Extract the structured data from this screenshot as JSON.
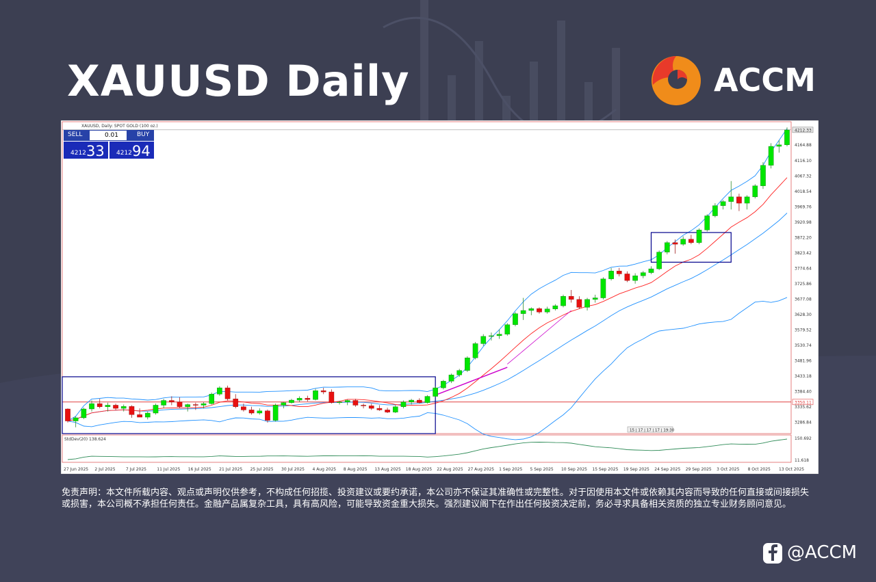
{
  "page": {
    "title": "XAUUSD Daily",
    "brand": "ACCM",
    "social_handle": "@ACCM",
    "disclaimer": "免责声明：本文件所载内容、观点或声明仅供参考，不构成任何招揽、投资建议或要约承诺，本公司亦不保证其准确性或完整性。对于因使用本文件或依赖其内容而导致的任何直接或间接损失或损害，本公司概不承担任何责任。金融产品属复杂工具，具有高风险，可能导致资金重大损失。强烈建议阁下在作出任何投资决定前，务必寻求具备相关资质的独立专业财务顾问意见。",
    "colors": {
      "background": "#3c3f52",
      "bull": "#00e600",
      "bear": "#e81010",
      "bb": "#1e90ff",
      "ma": "#ff2020",
      "stddev": "#2e8b57",
      "box": "#00008b",
      "hline": "#e04040",
      "accent": "#f08c1a"
    }
  },
  "trade_panel": {
    "sell_label": "SELL",
    "buy_label": "BUY",
    "lot": "0.01",
    "bid_prefix": "4212",
    "bid_main": "33",
    "ask_prefix": "4212",
    "ask_main": "94"
  },
  "chart_data": {
    "type": "candlestick",
    "header": "XAUUSD, Daily: SPOT GOLD (100 oz.)",
    "y_ticks": [
      "4212.33",
      "4164.88",
      "4116.10",
      "4067.32",
      "4018.54",
      "3969.76",
      "3920.98",
      "3872.20",
      "3823.42",
      "3774.64",
      "3725.86",
      "3677.08",
      "3628.30",
      "3579.52",
      "3530.74",
      "3481.96",
      "3433.18",
      "3384.40",
      "3350.11",
      "3335.62",
      "3286.84"
    ],
    "ylim": [
      3250,
      4225
    ],
    "current_price": "4212.33",
    "hline_price": 3350.11,
    "hline_label": "3350.11",
    "x_labels": [
      "27 Jun 2025",
      "2 Jul 2025",
      "7 Jul 2025",
      "11 Jul 2025",
      "16 Jul 2025",
      "21 Jul 2025",
      "25 Jul 2025",
      "30 Jul 2025",
      "4 Aug 2025",
      "8 Aug 2025",
      "13 Aug 2025",
      "18 Aug 2025",
      "22 Aug 2025",
      "27 Aug 2025",
      "1 Sep 2025",
      "5 Sep 2025",
      "10 Sep 2025",
      "15 Sep 2025",
      "19 Sep 2025",
      "24 Sep 2025",
      "29 Sep 2025",
      "3 Oct 2025",
      "8 Oct 2025",
      "13 Oct 2025"
    ],
    "time_marker": "15 | 17 | 17 | 17 | 19:30",
    "candles": [
      [
        3328,
        3330,
        3285,
        3290
      ],
      [
        3290,
        3305,
        3270,
        3300
      ],
      [
        3300,
        3332,
        3296,
        3328
      ],
      [
        3328,
        3355,
        3320,
        3345
      ],
      [
        3345,
        3360,
        3330,
        3335
      ],
      [
        3335,
        3348,
        3320,
        3340
      ],
      [
        3340,
        3345,
        3325,
        3330
      ],
      [
        3330,
        3342,
        3320,
        3336
      ],
      [
        3336,
        3340,
        3300,
        3310
      ],
      [
        3310,
        3330,
        3305,
        3302
      ],
      [
        3302,
        3320,
        3295,
        3315
      ],
      [
        3315,
        3345,
        3310,
        3340
      ],
      [
        3340,
        3360,
        3330,
        3355
      ],
      [
        3355,
        3368,
        3340,
        3350
      ],
      [
        3350,
        3365,
        3330,
        3335
      ],
      [
        3335,
        3345,
        3320,
        3342
      ],
      [
        3342,
        3348,
        3325,
        3340
      ],
      [
        3340,
        3350,
        3330,
        3345
      ],
      [
        3345,
        3380,
        3342,
        3375
      ],
      [
        3375,
        3400,
        3370,
        3395
      ],
      [
        3395,
        3402,
        3355,
        3360
      ],
      [
        3360,
        3375,
        3330,
        3335
      ],
      [
        3335,
        3345,
        3320,
        3325
      ],
      [
        3325,
        3335,
        3310,
        3315
      ],
      [
        3315,
        3330,
        3310,
        3322
      ],
      [
        3322,
        3326,
        3285,
        3292
      ],
      [
        3292,
        3345,
        3288,
        3340
      ],
      [
        3340,
        3350,
        3330,
        3348
      ],
      [
        3348,
        3360,
        3345,
        3356
      ],
      [
        3356,
        3368,
        3350,
        3362
      ],
      [
        3362,
        3370,
        3352,
        3358
      ],
      [
        3358,
        3392,
        3355,
        3386
      ],
      [
        3386,
        3395,
        3375,
        3382
      ],
      [
        3382,
        3390,
        3345,
        3348
      ],
      [
        3348,
        3354,
        3342,
        3350
      ],
      [
        3350,
        3358,
        3340,
        3355
      ],
      [
        3355,
        3360,
        3335,
        3340
      ],
      [
        3340,
        3345,
        3330,
        3338
      ],
      [
        3338,
        3345,
        3325,
        3330
      ],
      [
        3330,
        3340,
        3322,
        3325
      ],
      [
        3325,
        3332,
        3315,
        3318
      ],
      [
        3318,
        3340,
        3315,
        3335
      ],
      [
        3335,
        3355,
        3330,
        3350
      ],
      [
        3350,
        3360,
        3342,
        3356
      ],
      [
        3356,
        3362,
        3345,
        3348
      ],
      [
        3348,
        3372,
        3345,
        3368
      ],
      [
        3368,
        3400,
        3365,
        3395
      ],
      [
        3395,
        3420,
        3390,
        3416
      ],
      [
        3416,
        3440,
        3410,
        3436
      ],
      [
        3436,
        3455,
        3430,
        3450
      ],
      [
        3450,
        3495,
        3445,
        3490
      ],
      [
        3490,
        3540,
        3485,
        3535
      ],
      [
        3535,
        3565,
        3528,
        3558
      ],
      [
        3558,
        3570,
        3545,
        3560
      ],
      [
        3560,
        3580,
        3550,
        3565
      ],
      [
        3565,
        3600,
        3560,
        3595
      ],
      [
        3595,
        3635,
        3590,
        3630
      ],
      [
        3630,
        3680,
        3610,
        3640
      ],
      [
        3640,
        3650,
        3625,
        3646
      ],
      [
        3646,
        3650,
        3630,
        3635
      ],
      [
        3635,
        3652,
        3630,
        3645
      ],
      [
        3645,
        3660,
        3640,
        3655
      ],
      [
        3655,
        3690,
        3650,
        3685
      ],
      [
        3685,
        3705,
        3665,
        3675
      ],
      [
        3675,
        3685,
        3645,
        3650
      ],
      [
        3650,
        3680,
        3640,
        3675
      ],
      [
        3675,
        3690,
        3665,
        3680
      ],
      [
        3680,
        3745,
        3675,
        3740
      ],
      [
        3740,
        3775,
        3735,
        3765
      ],
      [
        3765,
        3775,
        3748,
        3756
      ],
      [
        3756,
        3764,
        3730,
        3735
      ],
      [
        3735,
        3758,
        3725,
        3750
      ],
      [
        3750,
        3765,
        3742,
        3760
      ],
      [
        3760,
        3780,
        3755,
        3772
      ],
      [
        3772,
        3830,
        3768,
        3825
      ],
      [
        3825,
        3860,
        3818,
        3855
      ],
      [
        3855,
        3865,
        3820,
        3850
      ],
      [
        3850,
        3875,
        3845,
        3866
      ],
      [
        3866,
        3880,
        3850,
        3855
      ],
      [
        3855,
        3900,
        3850,
        3895
      ],
      [
        3895,
        3945,
        3890,
        3940
      ],
      [
        3940,
        3980,
        3935,
        3972
      ],
      [
        3972,
        3990,
        3960,
        3985
      ],
      [
        3985,
        4050,
        3960,
        4000
      ],
      [
        4000,
        4010,
        3955,
        3980
      ],
      [
        3980,
        4005,
        3960,
        4000
      ],
      [
        4000,
        4040,
        3995,
        4035
      ],
      [
        4035,
        4110,
        4025,
        4100
      ],
      [
        4100,
        4170,
        4090,
        4160
      ],
      [
        4160,
        4180,
        4140,
        4165
      ],
      [
        4165,
        4220,
        4160,
        4212
      ]
    ],
    "indicator": {
      "name": "StdDev(20)",
      "value": "138.624",
      "ticks": [
        "150.692",
        "11.618"
      ]
    }
  }
}
